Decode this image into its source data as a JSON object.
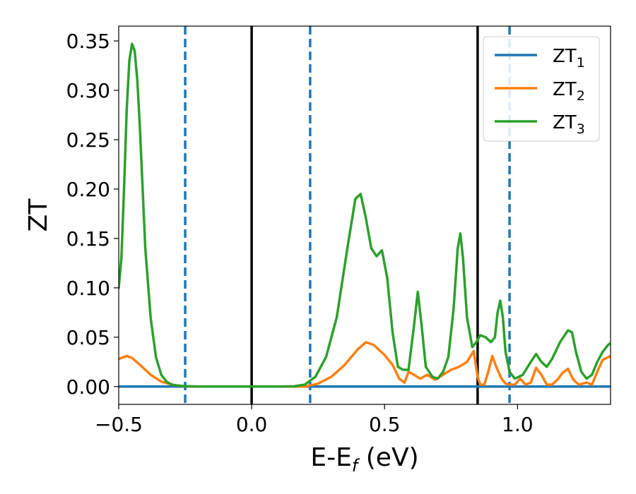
{
  "chart_data": {
    "type": "line",
    "xlabel": "E-E",
    "xlabel_sub": "f",
    "xlabel_unit": " (eV)",
    "ylabel": "ZT",
    "xlim": [
      -0.5,
      1.35
    ],
    "ylim": [
      -0.018,
      0.365
    ],
    "xticks": [
      -0.5,
      0.0,
      0.5,
      1.0
    ],
    "xtick_labels": [
      "−0.5",
      "0.0",
      "0.5",
      "1.0"
    ],
    "yticks": [
      0.0,
      0.05,
      0.1,
      0.15,
      0.2,
      0.25,
      0.3,
      0.35
    ],
    "ytick_labels": [
      "0.00",
      "0.05",
      "0.10",
      "0.15",
      "0.20",
      "0.25",
      "0.30",
      "0.35"
    ],
    "grid": false,
    "legend_position": "top-right",
    "vertical_lines": [
      {
        "x": -0.25,
        "style": "dashed",
        "color": "#1f77b4"
      },
      {
        "x": 0.0,
        "style": "solid",
        "color": "#000000"
      },
      {
        "x": 0.22,
        "style": "dashed",
        "color": "#1f77b4"
      },
      {
        "x": 0.85,
        "style": "solid",
        "color": "#000000"
      },
      {
        "x": 0.97,
        "style": "dashed",
        "color": "#1f77b4"
      }
    ],
    "series": [
      {
        "name": "ZT",
        "sub": "1",
        "color": "#1f77b4",
        "x": [
          -0.5,
          1.35
        ],
        "y": [
          0.0,
          0.0
        ]
      },
      {
        "name": "ZT",
        "sub": "2",
        "color": "#ff7f0e",
        "x": [
          -0.5,
          -0.47,
          -0.45,
          -0.42,
          -0.38,
          -0.34,
          -0.3,
          -0.26,
          -0.22,
          0.0,
          0.2,
          0.25,
          0.3,
          0.35,
          0.4,
          0.43,
          0.46,
          0.5,
          0.53,
          0.555,
          0.575,
          0.59,
          0.61,
          0.635,
          0.66,
          0.69,
          0.72,
          0.75,
          0.78,
          0.81,
          0.835,
          0.85,
          0.86,
          0.875,
          0.89,
          0.905,
          0.92,
          0.94,
          0.955,
          0.97,
          0.99,
          1.01,
          1.03,
          1.05,
          1.07,
          1.09,
          1.11,
          1.13,
          1.15,
          1.17,
          1.19,
          1.21,
          1.23,
          1.26,
          1.28,
          1.3,
          1.32,
          1.35
        ],
        "y": [
          0.028,
          0.031,
          0.029,
          0.022,
          0.012,
          0.005,
          0.002,
          0.0005,
          0.0,
          0.0,
          0.0,
          0.003,
          0.01,
          0.022,
          0.038,
          0.045,
          0.042,
          0.032,
          0.022,
          0.008,
          0.004,
          0.015,
          0.012,
          0.008,
          0.012,
          0.007,
          0.012,
          0.017,
          0.02,
          0.025,
          0.036,
          0.01,
          0.002,
          0.002,
          0.015,
          0.031,
          0.02,
          0.008,
          0.003,
          0.002,
          0.002,
          0.008,
          0.002,
          0.004,
          0.019,
          0.012,
          0.002,
          0.002,
          0.007,
          0.014,
          0.018,
          0.007,
          0.002,
          0.004,
          0.002,
          0.015,
          0.027,
          0.031
        ]
      },
      {
        "name": "ZT",
        "sub": "3",
        "color": "#2ca02c",
        "x": [
          -0.5,
          -0.49,
          -0.48,
          -0.47,
          -0.46,
          -0.45,
          -0.44,
          -0.43,
          -0.42,
          -0.41,
          -0.4,
          -0.38,
          -0.36,
          -0.34,
          -0.32,
          -0.3,
          -0.28,
          -0.25,
          -0.2,
          -0.1,
          0.0,
          0.1,
          0.16,
          0.2,
          0.24,
          0.28,
          0.32,
          0.36,
          0.39,
          0.41,
          0.43,
          0.45,
          0.47,
          0.49,
          0.51,
          0.53,
          0.55,
          0.57,
          0.59,
          0.61,
          0.625,
          0.64,
          0.655,
          0.68,
          0.7,
          0.72,
          0.74,
          0.76,
          0.775,
          0.785,
          0.795,
          0.81,
          0.83,
          0.845,
          0.86,
          0.88,
          0.9,
          0.915,
          0.925,
          0.935,
          0.945,
          0.955,
          0.97,
          0.99,
          1.02,
          1.05,
          1.07,
          1.09,
          1.11,
          1.13,
          1.16,
          1.19,
          1.205,
          1.22,
          1.24,
          1.26,
          1.28,
          1.3,
          1.32,
          1.34,
          1.35
        ],
        "y": [
          0.1,
          0.13,
          0.2,
          0.28,
          0.33,
          0.347,
          0.34,
          0.31,
          0.26,
          0.2,
          0.14,
          0.07,
          0.03,
          0.012,
          0.005,
          0.002,
          0.001,
          0.0005,
          0.0,
          0.0,
          0.0,
          0.0,
          0.0003,
          0.002,
          0.01,
          0.03,
          0.07,
          0.14,
          0.19,
          0.195,
          0.17,
          0.14,
          0.132,
          0.138,
          0.11,
          0.055,
          0.02,
          0.017,
          0.017,
          0.06,
          0.096,
          0.06,
          0.02,
          0.01,
          0.008,
          0.015,
          0.03,
          0.08,
          0.14,
          0.155,
          0.13,
          0.07,
          0.04,
          0.045,
          0.052,
          0.05,
          0.045,
          0.05,
          0.075,
          0.087,
          0.07,
          0.035,
          0.015,
          0.008,
          0.012,
          0.025,
          0.033,
          0.025,
          0.02,
          0.028,
          0.045,
          0.057,
          0.055,
          0.035,
          0.015,
          0.008,
          0.012,
          0.025,
          0.035,
          0.042,
          0.044
        ]
      }
    ]
  }
}
